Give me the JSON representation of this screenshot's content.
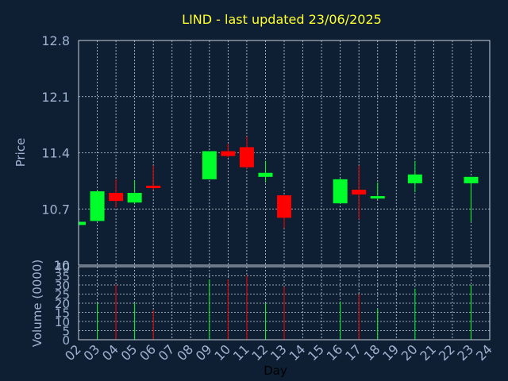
{
  "chart_data": {
    "type": "candlestick",
    "title": "LIND - last updated 23/06/2025",
    "xlabel": "Day",
    "ylabel_price": "Price",
    "ylabel_volume": "Volume (0000)",
    "x_ticks": [
      "02",
      "03",
      "04",
      "05",
      "06",
      "07",
      "08",
      "09",
      "10",
      "11",
      "12",
      "13",
      "14",
      "15",
      "16",
      "17",
      "18",
      "19",
      "20",
      "21",
      "22",
      "23",
      "24"
    ],
    "price_ticks": [
      10,
      10.7,
      11.4,
      12.1,
      12.8
    ],
    "price_tick_labels": [
      "10",
      "10.7",
      "11.4",
      "12.1",
      "12.8"
    ],
    "price_ylim": [
      10,
      12.8
    ],
    "volume_ticks": [
      0,
      5,
      10,
      15,
      20,
      25,
      30,
      35,
      40
    ],
    "volume_ylim": [
      0,
      40
    ],
    "grid": true,
    "colors": {
      "up": "#00ff2a",
      "down": "#ff0000",
      "background": "#0f1f33",
      "title": "#ffff33",
      "text": "#9fb3d1",
      "grid": "#c8d0dc"
    },
    "candles": [
      {
        "day": "02",
        "open": 10.5,
        "close": 10.54,
        "high": 10.54,
        "low": 10.5,
        "volume": 0
      },
      {
        "day": "03",
        "open": 10.55,
        "close": 10.92,
        "high": 10.93,
        "low": 10.55,
        "volume": 20
      },
      {
        "day": "04",
        "open": 10.9,
        "close": 10.8,
        "high": 11.07,
        "low": 10.72,
        "volume": 30
      },
      {
        "day": "05",
        "open": 10.78,
        "close": 10.9,
        "high": 11.06,
        "low": 10.76,
        "volume": 20
      },
      {
        "day": "06",
        "open": 10.99,
        "close": 10.96,
        "high": 11.24,
        "low": 10.94,
        "volume": 16
      },
      {
        "day": "09",
        "open": 11.07,
        "close": 11.42,
        "high": 11.42,
        "low": 11.07,
        "volume": 33
      },
      {
        "day": "10",
        "open": 11.42,
        "close": 11.36,
        "high": 11.51,
        "low": 11.34,
        "volume": 33
      },
      {
        "day": "11",
        "open": 11.47,
        "close": 11.22,
        "high": 11.6,
        "low": 11.2,
        "volume": 35
      },
      {
        "day": "12",
        "open": 11.1,
        "close": 11.15,
        "high": 11.3,
        "low": 11.03,
        "volume": 20
      },
      {
        "day": "13",
        "open": 10.87,
        "close": 10.59,
        "high": 10.87,
        "low": 10.46,
        "volume": 29
      },
      {
        "day": "16",
        "open": 10.77,
        "close": 11.07,
        "high": 11.08,
        "low": 10.77,
        "volume": 21
      },
      {
        "day": "17",
        "open": 10.94,
        "close": 10.88,
        "high": 11.24,
        "low": 10.57,
        "volume": 25
      },
      {
        "day": "18",
        "open": 10.83,
        "close": 10.86,
        "high": 11.03,
        "low": 10.82,
        "volume": 17
      },
      {
        "day": "20",
        "open": 11.02,
        "close": 11.13,
        "high": 11.3,
        "low": 10.91,
        "volume": 28
      },
      {
        "day": "23",
        "open": 11.02,
        "close": 11.1,
        "high": 11.1,
        "low": 10.54,
        "volume": 30
      }
    ]
  }
}
